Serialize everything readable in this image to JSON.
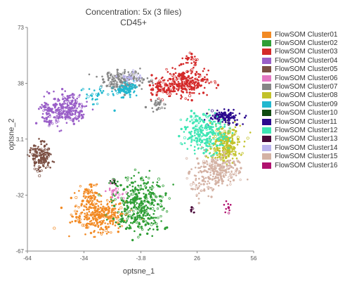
{
  "chart_data": {
    "type": "scatter",
    "title": "Concentration: 5x  (3 files)",
    "subtitle": "CD45+",
    "xlabel": "optsne_1",
    "ylabel": "optsne_2",
    "xlim": [
      -64,
      56
    ],
    "ylim": [
      -67,
      73
    ],
    "x_ticks": [
      "-64",
      "-34",
      "-3.8",
      "26",
      "56"
    ],
    "y_ticks": [
      "73",
      "38",
      "3.1",
      "-32",
      "-67"
    ],
    "x_tick_values": [
      -64,
      -34,
      -3.8,
      26,
      56
    ],
    "y_tick_values": [
      73,
      38,
      3.1,
      -32,
      -67
    ],
    "legend_position": "right",
    "series": [
      {
        "name": "FlowSOM Cluster01",
        "color": "#f28a24",
        "clusters": [
          {
            "cx": -26,
            "cy": -45,
            "sx": 7,
            "sy": 5,
            "n": 320
          },
          {
            "cx": -32,
            "cy": -31,
            "sx": 3,
            "sy": 4,
            "n": 70
          }
        ]
      },
      {
        "name": "FlowSOM Cluster02",
        "color": "#2e9e35",
        "clusters": [
          {
            "cx": -5,
            "cy": -35,
            "sx": 7,
            "sy": 8,
            "n": 300
          },
          {
            "cx": -3,
            "cy": -48,
            "sx": 5,
            "sy": 4,
            "n": 90
          }
        ]
      },
      {
        "name": "FlowSOM Cluster03",
        "color": "#d42a2a",
        "clusters": [
          {
            "cx": 20,
            "cy": 38,
            "sx": 6,
            "sy": 4,
            "n": 260
          },
          {
            "cx": 22,
            "cy": 53,
            "sx": 2,
            "sy": 2,
            "n": 30
          },
          {
            "cx": 8,
            "cy": 35,
            "sx": 4,
            "sy": 3,
            "n": 60
          }
        ]
      },
      {
        "name": "FlowSOM Cluster04",
        "color": "#9a5fc8",
        "clusters": [
          {
            "cx": -43,
            "cy": 22,
            "sx": 5,
            "sy": 5,
            "n": 240
          },
          {
            "cx": -53,
            "cy": 19,
            "sx": 3,
            "sy": 3,
            "n": 60
          }
        ]
      },
      {
        "name": "FlowSOM Cluster05",
        "color": "#7b4f43",
        "clusters": [
          {
            "cx": -57,
            "cy": -8,
            "sx": 3,
            "sy": 4,
            "n": 150
          }
        ]
      },
      {
        "name": "FlowSOM Cluster06",
        "color": "#e377c2",
        "clusters": [
          {
            "cx": -18,
            "cy": -29,
            "sx": 3,
            "sy": 3,
            "n": 25
          }
        ]
      },
      {
        "name": "FlowSOM Cluster07",
        "color": "#868686",
        "clusters": [
          {
            "cx": -13,
            "cy": 40,
            "sx": 6,
            "sy": 3,
            "n": 170
          },
          {
            "cx": 5,
            "cy": 25,
            "sx": 2,
            "sy": 2,
            "n": 30
          }
        ]
      },
      {
        "name": "FlowSOM Cluster08",
        "color": "#c2c22a",
        "clusters": [
          {
            "cx": 41,
            "cy": 0,
            "sx": 4,
            "sy": 6,
            "n": 260
          }
        ]
      },
      {
        "name": "FlowSOM Cluster09",
        "color": "#22b8cf",
        "clusters": [
          {
            "cx": -12,
            "cy": 34,
            "sx": 3,
            "sy": 2,
            "n": 90
          },
          {
            "cx": -28,
            "cy": 30,
            "sx": 4,
            "sy": 3,
            "n": 30
          }
        ]
      },
      {
        "name": "FlowSOM Cluster10",
        "color": "#0e4a10",
        "clusters": [
          {
            "cx": -19,
            "cy": -23,
            "sx": 1,
            "sy": 1,
            "n": 8
          }
        ]
      },
      {
        "name": "FlowSOM Cluster11",
        "color": "#2b0a8e",
        "clusters": [
          {
            "cx": 41,
            "cy": 17,
            "sx": 4,
            "sy": 2,
            "n": 110
          }
        ]
      },
      {
        "name": "FlowSOM Cluster12",
        "color": "#3ee6b4",
        "clusters": [
          {
            "cx": 30,
            "cy": 7,
            "sx": 6,
            "sy": 6,
            "n": 260
          }
        ]
      },
      {
        "name": "FlowSOM Cluster13",
        "color": "#4a0a3a",
        "clusters": [
          {
            "cx": 24,
            "cy": -42,
            "sx": 1,
            "sy": 1,
            "n": 6
          }
        ]
      },
      {
        "name": "FlowSOM Cluster14",
        "color": "#b9b2ec",
        "clusters": [
          {
            "cx": -8,
            "cy": 42,
            "sx": 3,
            "sy": 2,
            "n": 25
          }
        ]
      },
      {
        "name": "FlowSOM Cluster15",
        "color": "#d4b2a4",
        "clusters": [
          {
            "cx": 36,
            "cy": -17,
            "sx": 6,
            "sy": 5,
            "n": 230
          },
          {
            "cx": 28,
            "cy": -27,
            "sx": 3,
            "sy": 3,
            "n": 40
          }
        ]
      },
      {
        "name": "FlowSOM Cluster16",
        "color": "#b0126f",
        "clusters": [
          {
            "cx": 42,
            "cy": -38,
            "sx": 2,
            "sy": 2,
            "n": 10
          }
        ]
      }
    ]
  }
}
